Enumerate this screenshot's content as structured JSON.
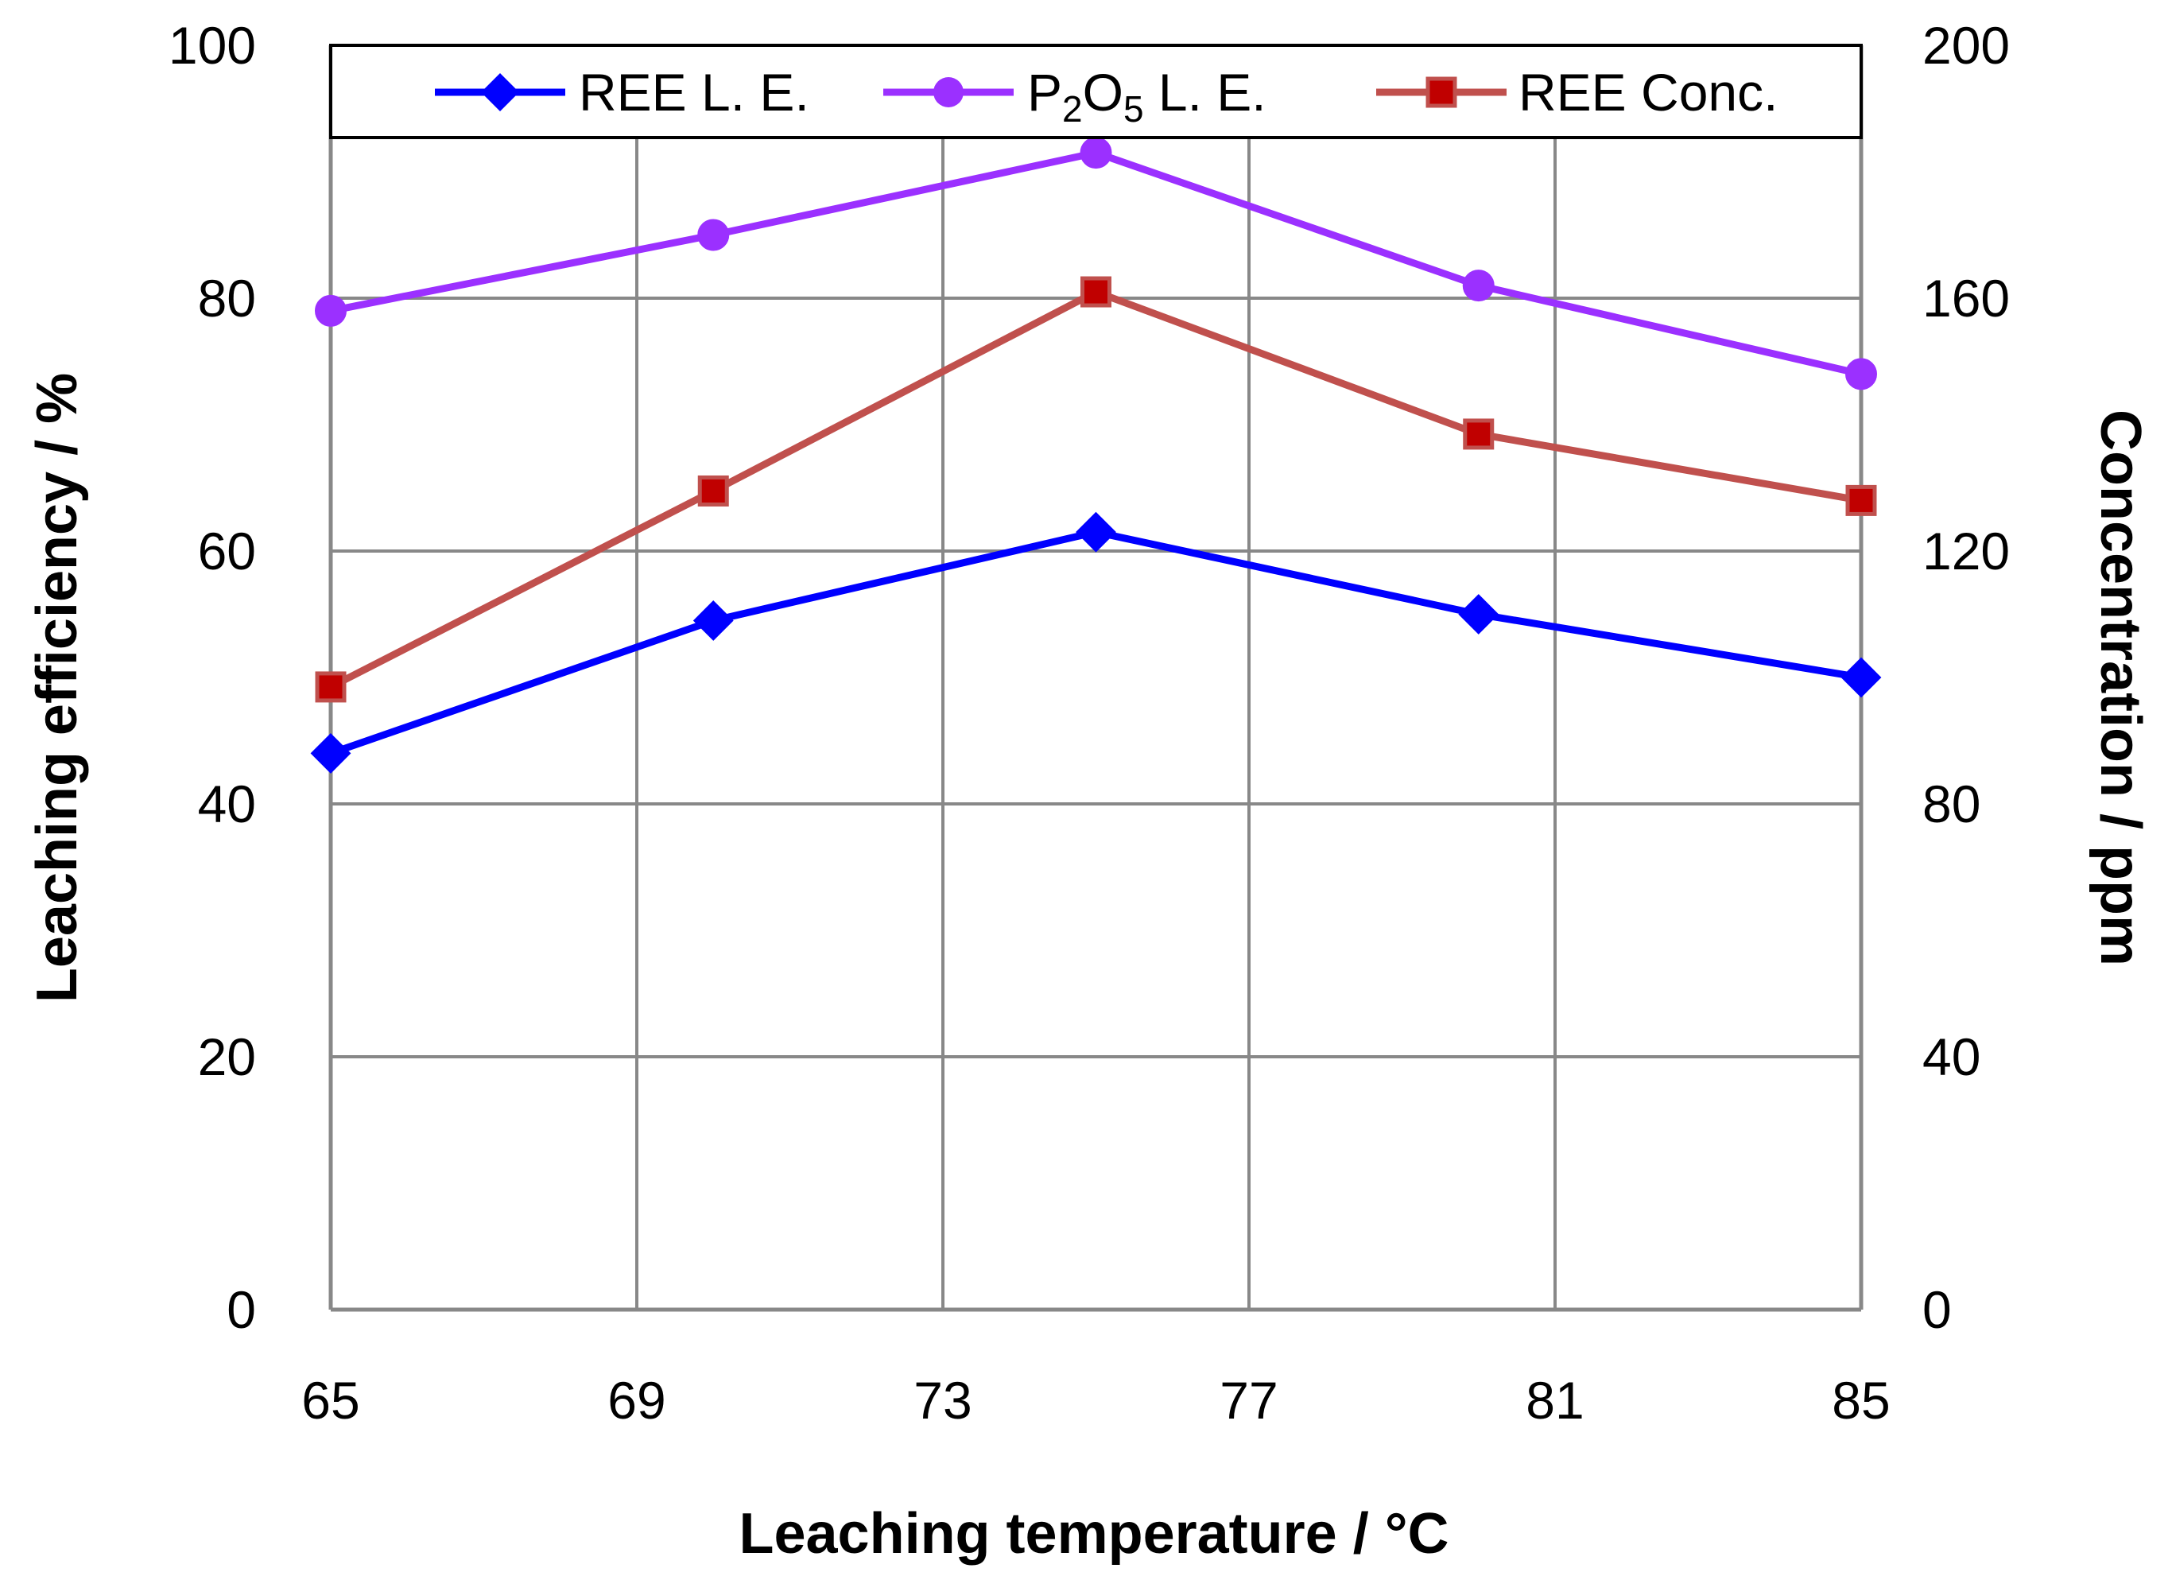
{
  "chart_data": {
    "type": "line",
    "xlabel": "Leaching temperature / °C",
    "ylabel": "Leaching efficiency  / %",
    "y2label": "Concentration / ppm",
    "xlim": [
      65,
      85
    ],
    "ylim": [
      0,
      100
    ],
    "y2lim": [
      0,
      200
    ],
    "xticks": [
      65,
      69,
      73,
      77,
      81,
      85
    ],
    "yticks": [
      0,
      20,
      40,
      60,
      80,
      100
    ],
    "y2ticks": [
      0,
      40,
      80,
      120,
      160,
      200
    ],
    "grid": true,
    "legend_position": "top",
    "series": [
      {
        "name": "REE L. E.",
        "axis": "left",
        "color": "#0000FF",
        "marker": "diamond",
        "x": [
          65,
          70,
          75,
          80,
          85
        ],
        "values": [
          44,
          54.5,
          61.5,
          55,
          50
        ]
      },
      {
        "name": "P2O5 L. E.",
        "legend_main": "P",
        "legend_sub1": "2",
        "legend_mid": "O",
        "legend_sub2": "5",
        "legend_tail": " L. E.",
        "axis": "left",
        "color": "#9B30FF",
        "marker": "circle",
        "x": [
          65,
          70,
          75,
          80,
          85
        ],
        "values": [
          79,
          85,
          91.5,
          81,
          74
        ]
      },
      {
        "name": "REE Conc.",
        "axis": "right",
        "color": "#C0504D",
        "marker_fill": "#C00000",
        "marker": "square",
        "x": [
          65,
          70,
          75,
          80,
          85
        ],
        "values": [
          98.5,
          129.5,
          161,
          138.5,
          128
        ]
      }
    ]
  }
}
